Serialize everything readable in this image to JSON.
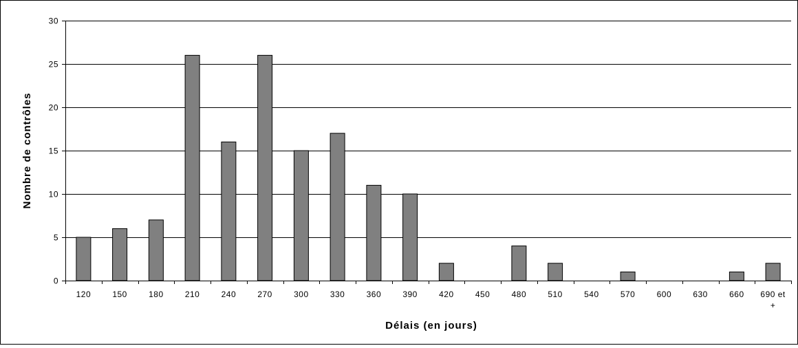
{
  "chart_data": {
    "type": "bar",
    "title": "",
    "xlabel": "Délais (en jours)",
    "ylabel": "Nombre de contrôles",
    "ylim": [
      0,
      30
    ],
    "yticks": [
      "0",
      "5",
      "10",
      "15",
      "20",
      "25",
      "30"
    ],
    "grid": true,
    "legend": "none",
    "categories": [
      "120",
      "150",
      "180",
      "210",
      "240",
      "270",
      "300",
      "330",
      "360",
      "390",
      "420",
      "450",
      "480",
      "510",
      "540",
      "570",
      "600",
      "630",
      "660",
      "690 et +"
    ],
    "values": [
      5,
      6,
      7,
      26,
      16,
      26,
      15,
      17,
      11,
      10,
      2,
      0,
      4,
      2,
      0,
      1,
      0,
      0,
      1,
      2
    ],
    "colors": {
      "bar_fill": "#808080",
      "bar_stroke": "#000000",
      "grid": "#000000",
      "background": "#ffffff"
    }
  }
}
